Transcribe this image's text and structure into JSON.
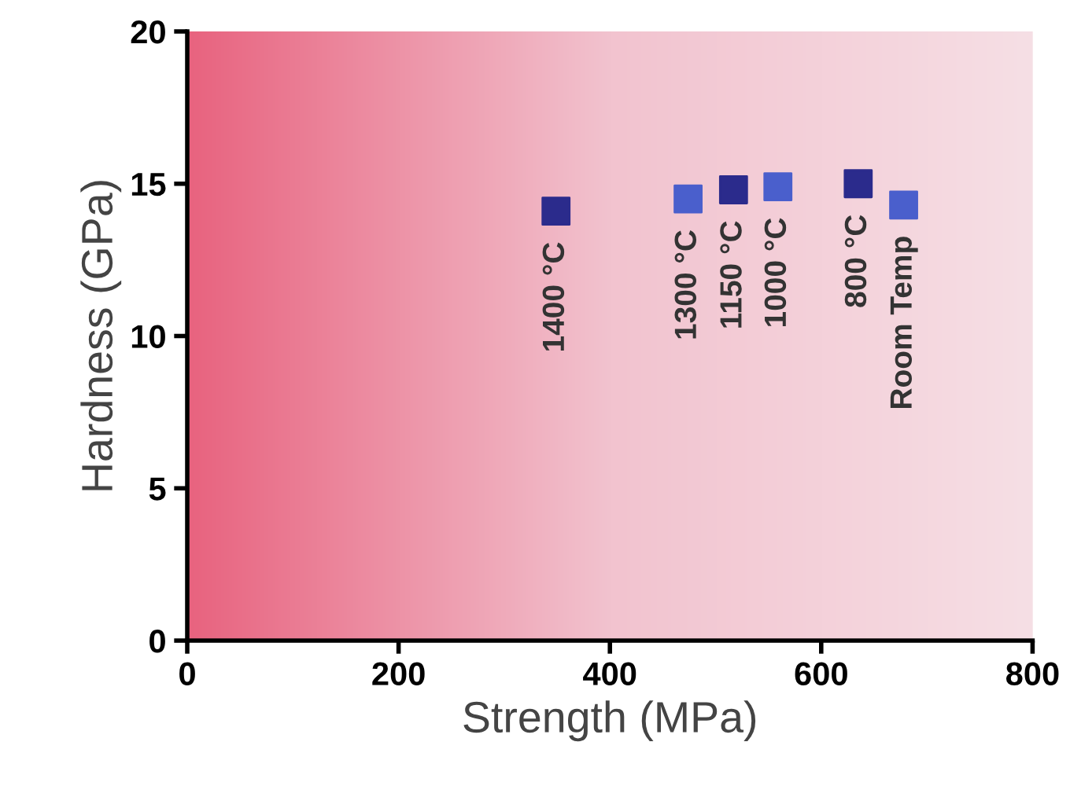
{
  "chart_data": {
    "type": "scatter",
    "xlabel": "Strength (MPa)",
    "ylabel": "Hardness (GPa)",
    "x": [
      349,
      474,
      517,
      559,
      635,
      678
    ],
    "values": [
      14.1,
      14.5,
      14.8,
      14.9,
      15.0,
      14.3
    ],
    "colors": [
      "#2b2b8c",
      "#4a5fcc",
      "#2b2b8c",
      "#4a5fcc",
      "#2b2b8c",
      "#4a5fcc"
    ],
    "marker": "square",
    "grid": false,
    "legend": false,
    "xlim": [
      0,
      800
    ],
    "xticks": [
      0,
      200,
      400,
      600,
      800
    ],
    "ylim": [
      0,
      20
    ],
    "yticks": [
      0,
      5,
      10,
      15,
      20
    ],
    "annotations": [
      {
        "text": "1400 °C",
        "x": 349,
        "y": 14.1
      },
      {
        "text": "1300 °C",
        "x": 474,
        "y": 14.5
      },
      {
        "text": "1150 °C",
        "x": 517,
        "y": 14.8
      },
      {
        "text": "1000 °C",
        "x": 559,
        "y": 14.9
      },
      {
        "text": "800 °C",
        "x": 635,
        "y": 15.0
      },
      {
        "text": "Room Temp",
        "x": 678,
        "y": 14.3
      }
    ]
  }
}
